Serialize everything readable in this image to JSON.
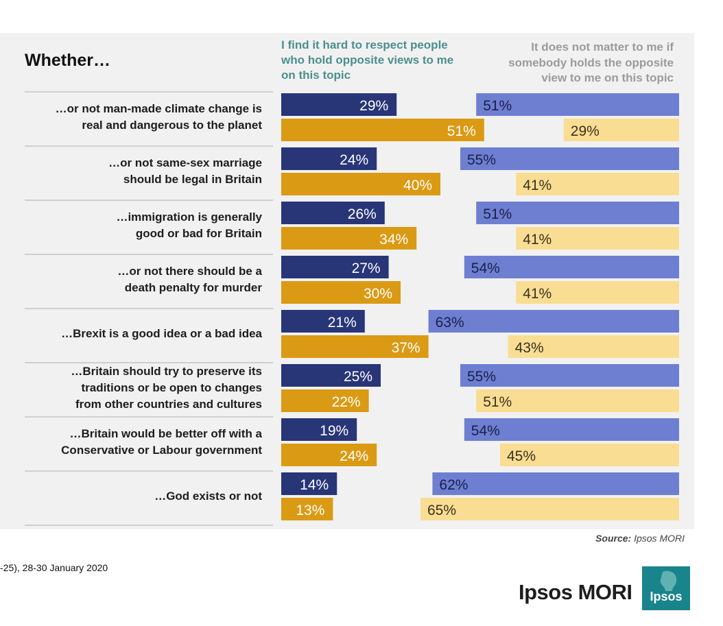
{
  "chart_data": {
    "type": "bar",
    "title": "Whether…",
    "series": [
      {
        "name": "I find it hard to respect people who hold opposite views to me on this topic",
        "color": "#f1f1f1"
      },
      {
        "name": "It does not matter to me if somebody holds the opposite view to me on this topic",
        "color": "#f1f1f1"
      }
    ],
    "groups": [
      {
        "label": [
          "…or not man-made climate change is",
          "real and dangerous to the planet"
        ],
        "blue_left": 29,
        "blue_right": 51,
        "gold_left": 51,
        "gold_right": 29
      },
      {
        "label": [
          "…or not same-sex marriage",
          "should be legal in Britain"
        ],
        "blue_left": 24,
        "blue_right": 55,
        "gold_left": 40,
        "gold_right": 41
      },
      {
        "label": [
          "…immigration is generally",
          "good or bad for Britain"
        ],
        "blue_left": 26,
        "blue_right": 51,
        "gold_left": 34,
        "gold_right": 41
      },
      {
        "label": [
          "…or not there should be a",
          "death penalty for murder"
        ],
        "blue_left": 27,
        "blue_right": 54,
        "gold_left": 30,
        "gold_right": 41
      },
      {
        "label": [
          "…Brexit is a good idea or a bad idea"
        ],
        "blue_left": 21,
        "blue_right": 63,
        "gold_left": 37,
        "gold_right": 43
      },
      {
        "label": [
          "…Britain should try to preserve its",
          "traditions or be open to changes",
          "from other countries and cultures"
        ],
        "blue_left": 25,
        "blue_right": 55,
        "gold_left": 22,
        "gold_right": 51
      },
      {
        "label": [
          "…Britain would be better off with a",
          "Conservative or Labour government"
        ],
        "blue_left": 19,
        "blue_right": 54,
        "gold_left": 24,
        "gold_right": 45
      },
      {
        "label": [
          "…God exists or not"
        ],
        "blue_left": 14,
        "blue_right": 62,
        "gold_left": 13,
        "gold_right": 65
      }
    ],
    "value_suffix": "%"
  },
  "header": {
    "title": "Whether…",
    "left_col": "I find it hard to respect people who hold opposite views to me on this topic",
    "right_col_lines": [
      "It does not matter to me if",
      "somebody holds the opposite",
      "view to me on this topic"
    ]
  },
  "source": {
    "label": "Source:",
    "name": "Ipsos MORI"
  },
  "footnote": "-25), 28-30 January 2020",
  "brand": "Ipsos MORI",
  "logo_text": "Ipsos",
  "colors": {
    "navy": "#283577",
    "periwinkle": "#6e7fd1",
    "gold": "#db9a14",
    "pale_gold": "#f9dd92",
    "teal": "#4b8f8c"
  }
}
